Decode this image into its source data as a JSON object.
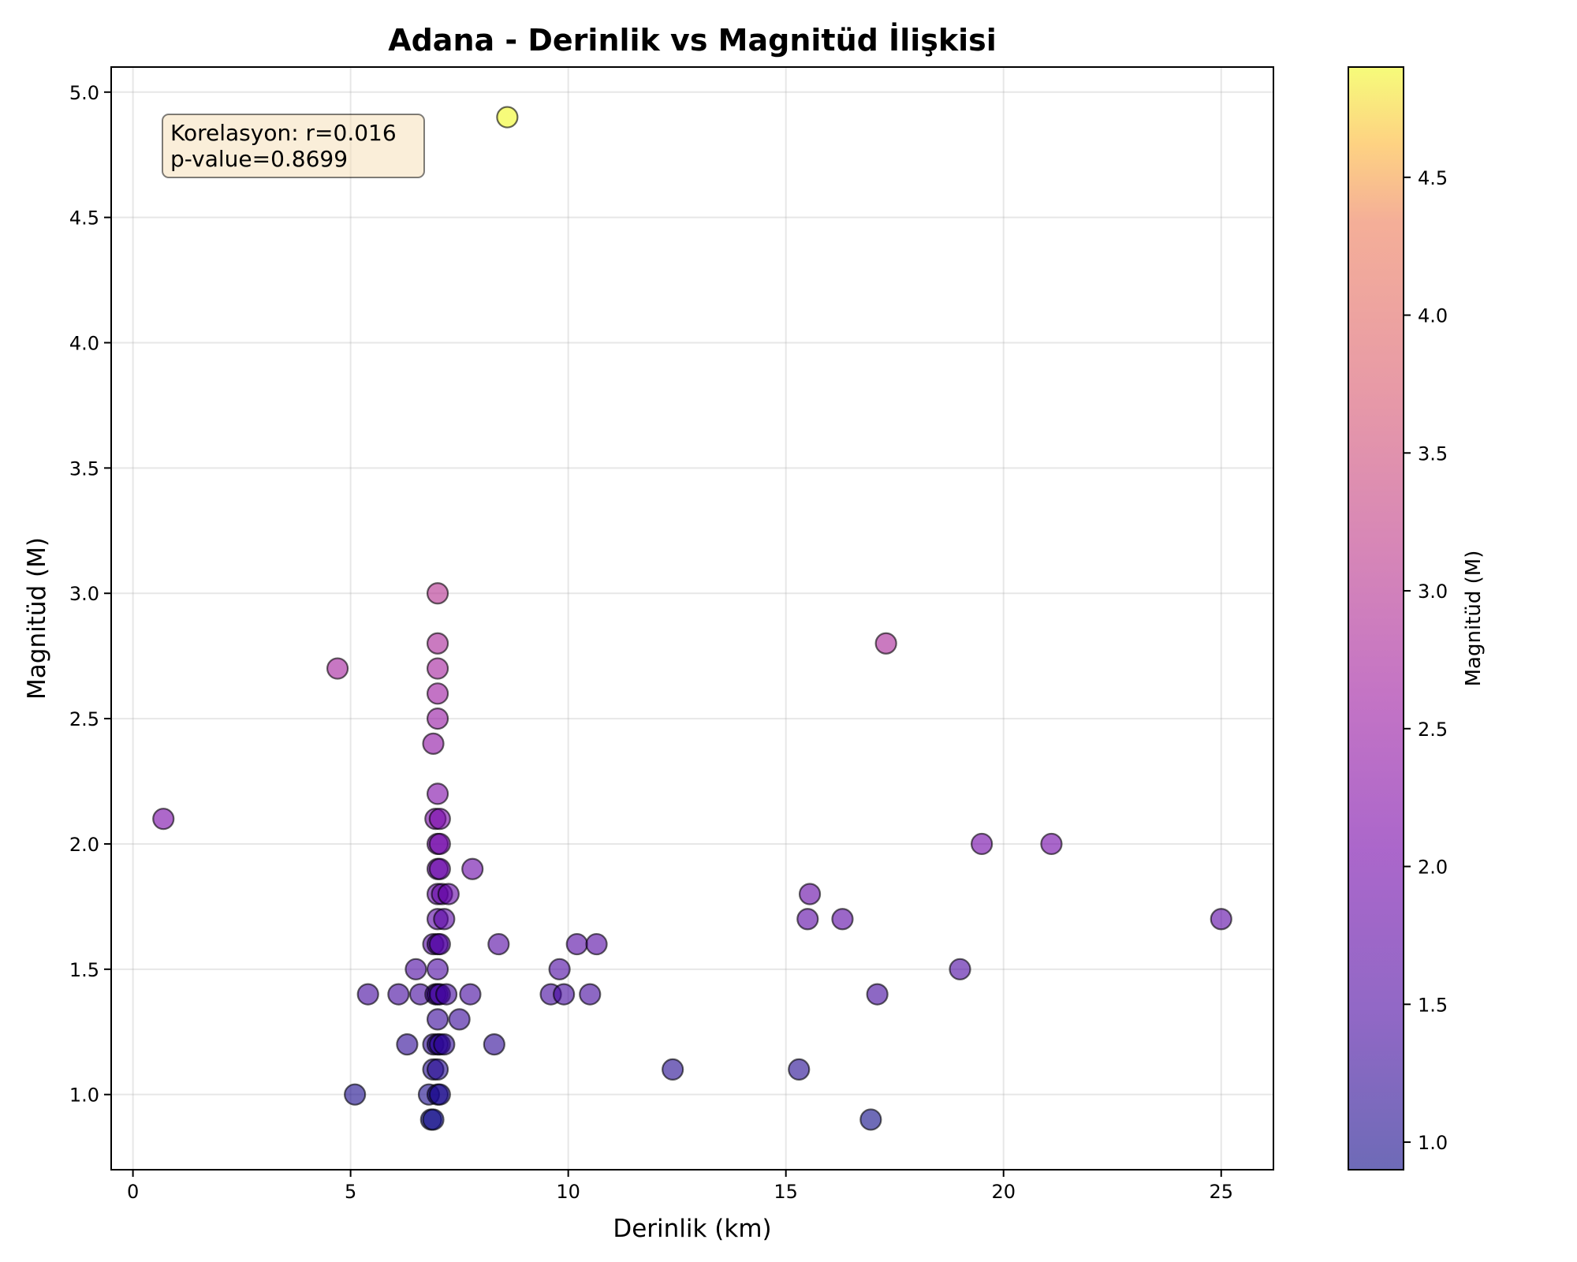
{
  "chart_data": {
    "type": "scatter",
    "title": "Adana - Derinlik vs Magnitüd İlişkisi",
    "xlabel": "Derinlik (km)",
    "ylabel": "Magnitüd (M)",
    "xlim": [
      -0.5,
      26.2
    ],
    "ylim": [
      0.7,
      5.1
    ],
    "xticks": [
      0,
      5,
      10,
      15,
      20,
      25
    ],
    "yticks": [
      1.0,
      1.5,
      2.0,
      2.5,
      3.0,
      3.5,
      4.0,
      4.5,
      5.0
    ],
    "grid": true,
    "annotation": [
      "Korelasyon: r=0.016",
      "p-value=0.8699"
    ],
    "colorbar": {
      "label": "Magnitüd (M)",
      "colormap": "plasma",
      "alpha": 0.6,
      "range": [
        0.9,
        4.9
      ],
      "ticks": [
        1.0,
        1.5,
        2.0,
        2.5,
        3.0,
        3.5,
        4.0,
        4.5
      ]
    },
    "points": [
      {
        "x": 0.7,
        "y": 2.1
      },
      {
        "x": 4.7,
        "y": 2.7
      },
      {
        "x": 5.1,
        "y": 1.0
      },
      {
        "x": 5.4,
        "y": 1.4
      },
      {
        "x": 6.1,
        "y": 1.4
      },
      {
        "x": 6.3,
        "y": 1.2
      },
      {
        "x": 6.5,
        "y": 1.5
      },
      {
        "x": 6.6,
        "y": 1.4
      },
      {
        "x": 6.8,
        "y": 1.0
      },
      {
        "x": 6.85,
        "y": 0.9
      },
      {
        "x": 6.9,
        "y": 0.9
      },
      {
        "x": 6.9,
        "y": 1.6
      },
      {
        "x": 6.9,
        "y": 2.4
      },
      {
        "x": 6.9,
        "y": 1.1
      },
      {
        "x": 6.9,
        "y": 1.2
      },
      {
        "x": 6.95,
        "y": 1.4
      },
      {
        "x": 6.95,
        "y": 2.1
      },
      {
        "x": 7.0,
        "y": 3.0
      },
      {
        "x": 7.0,
        "y": 2.8
      },
      {
        "x": 7.0,
        "y": 2.7
      },
      {
        "x": 7.0,
        "y": 2.6
      },
      {
        "x": 7.0,
        "y": 2.5
      },
      {
        "x": 7.0,
        "y": 2.2
      },
      {
        "x": 7.0,
        "y": 2.0
      },
      {
        "x": 7.0,
        "y": 1.9
      },
      {
        "x": 7.0,
        "y": 1.8
      },
      {
        "x": 7.0,
        "y": 1.7
      },
      {
        "x": 7.0,
        "y": 1.6
      },
      {
        "x": 7.0,
        "y": 1.5
      },
      {
        "x": 7.0,
        "y": 1.4
      },
      {
        "x": 7.0,
        "y": 1.3
      },
      {
        "x": 7.0,
        "y": 1.2
      },
      {
        "x": 7.0,
        "y": 1.1
      },
      {
        "x": 7.0,
        "y": 1.0
      },
      {
        "x": 7.05,
        "y": 2.1
      },
      {
        "x": 7.05,
        "y": 1.9
      },
      {
        "x": 7.05,
        "y": 2.0
      },
      {
        "x": 7.05,
        "y": 1.6
      },
      {
        "x": 7.05,
        "y": 1.4
      },
      {
        "x": 7.05,
        "y": 1.2
      },
      {
        "x": 7.05,
        "y": 1.0
      },
      {
        "x": 7.1,
        "y": 1.8
      },
      {
        "x": 7.15,
        "y": 1.7
      },
      {
        "x": 7.15,
        "y": 1.2
      },
      {
        "x": 7.2,
        "y": 1.4
      },
      {
        "x": 7.25,
        "y": 1.8
      },
      {
        "x": 7.5,
        "y": 1.3
      },
      {
        "x": 7.75,
        "y": 1.4
      },
      {
        "x": 7.8,
        "y": 1.9
      },
      {
        "x": 8.3,
        "y": 1.2
      },
      {
        "x": 8.4,
        "y": 1.6
      },
      {
        "x": 8.6,
        "y": 4.9
      },
      {
        "x": 9.6,
        "y": 1.4
      },
      {
        "x": 9.8,
        "y": 1.5
      },
      {
        "x": 9.9,
        "y": 1.4
      },
      {
        "x": 10.2,
        "y": 1.6
      },
      {
        "x": 10.5,
        "y": 1.4
      },
      {
        "x": 10.65,
        "y": 1.6
      },
      {
        "x": 12.4,
        "y": 1.1
      },
      {
        "x": 15.3,
        "y": 1.1
      },
      {
        "x": 15.5,
        "y": 1.7
      },
      {
        "x": 15.55,
        "y": 1.8
      },
      {
        "x": 16.3,
        "y": 1.7
      },
      {
        "x": 16.95,
        "y": 0.9
      },
      {
        "x": 17.1,
        "y": 1.4
      },
      {
        "x": 17.3,
        "y": 2.8
      },
      {
        "x": 19.0,
        "y": 1.5
      },
      {
        "x": 19.5,
        "y": 2.0
      },
      {
        "x": 21.1,
        "y": 2.0
      },
      {
        "x": 25.0,
        "y": 1.7
      }
    ]
  }
}
